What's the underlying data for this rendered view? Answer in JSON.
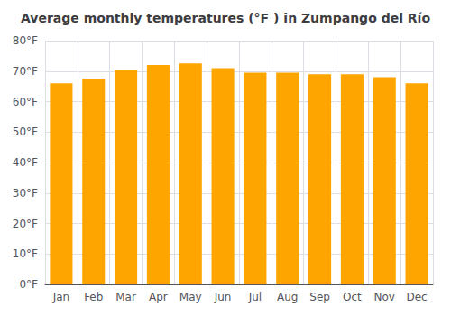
{
  "chart_data": {
    "type": "bar",
    "title": "Average monthly temperatures (°F ) in Zumpango del Río",
    "categories": [
      "Jan",
      "Feb",
      "Mar",
      "Apr",
      "May",
      "Jun",
      "Jul",
      "Aug",
      "Sep",
      "Oct",
      "Nov",
      "Dec"
    ],
    "values": [
      66,
      67.5,
      70.5,
      72,
      72.5,
      71,
      69.5,
      69.5,
      69,
      69,
      68,
      66
    ],
    "color": "#FFA500",
    "ylim": [
      0,
      80
    ],
    "yticks": [
      {
        "value": 0,
        "label": "0°F"
      },
      {
        "value": 10,
        "label": "10°F"
      },
      {
        "value": 20,
        "label": "20°F"
      },
      {
        "value": 30,
        "label": "30°F"
      },
      {
        "value": 40,
        "label": "40°F"
      },
      {
        "value": 50,
        "label": "50°F"
      },
      {
        "value": 60,
        "label": "60°F"
      },
      {
        "value": 70,
        "label": "70°F"
      },
      {
        "value": 80,
        "label": "80°F"
      }
    ],
    "grid": true
  }
}
